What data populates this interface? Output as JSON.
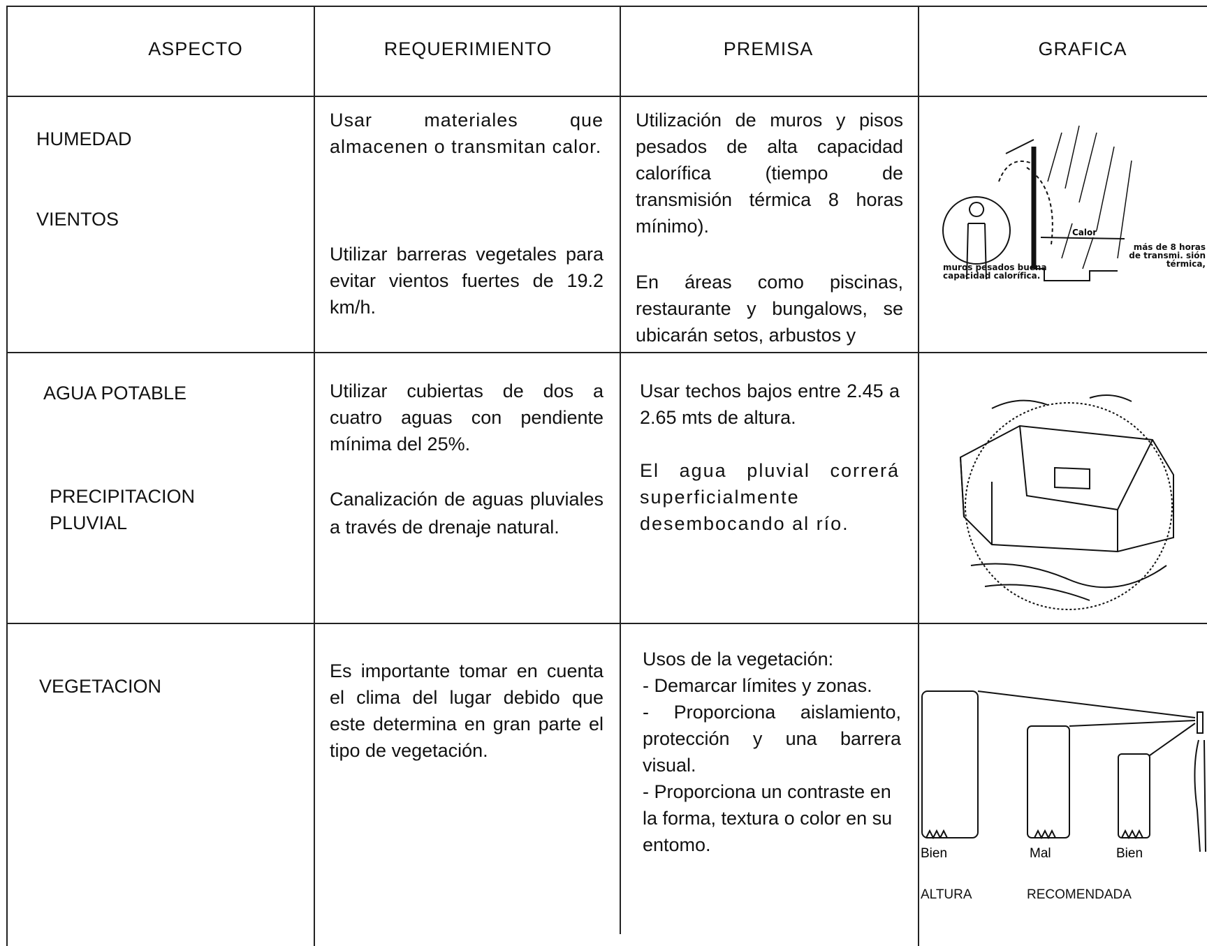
{
  "table": {
    "headers": [
      "ASPECTO",
      "REQUERIMIENTO",
      "PREMISA",
      "GRAFICA"
    ],
    "rows": [
      {
        "aspect": [
          "HUMEDAD",
          "VIENTOS"
        ],
        "requirement": [
          "Usar materiales que almacenen o transmitan calor.",
          "Utilizar barreras vegetales para evitar vientos fuertes de 19.2 km/h."
        ],
        "premise": [
          "Utilización de muros y pisos pesados de alta capacidad calorífica (tiempo de transmisión térmica 8 horas mínimo).",
          "En áreas como piscinas, restaurante y bungalows, se ubicarán setos, arbustos y"
        ],
        "graphic": {
          "labels": [
            "Calor",
            "más de 8 horas de transmi. sión térmica,",
            "muros pesados buena capacidad calorífica."
          ]
        }
      },
      {
        "aspect": [
          "AGUA POTABLE",
          "PRECIPITACION PLUVIAL"
        ],
        "requirement": [
          "Utilizar cubiertas de dos a cuatro aguas con pendiente mínima del 25%.",
          "Canalización de aguas pluviales a través de drenaje natural."
        ],
        "premise": [
          "Usar techos bajos entre 2.45 a 2.65 mts de altura.",
          "El agua pluvial correrá superficialmente desembocando al río."
        ],
        "graphic": {
          "labels": []
        }
      },
      {
        "aspect": [
          "VEGETACION"
        ],
        "requirement": [
          "Es importante tomar en cuenta el clima del lugar debido que este determina en gran parte el tipo de vegetación."
        ],
        "premise": [
          "Usos de la vegetación:",
          "- Demarcar límites y zonas.",
          "- Proporciona aislamiento, protección y una barrera visual.",
          "- Proporciona un contraste en la forma, textura o color en su entomo."
        ],
        "graphic": {
          "labels": [
            "Bien",
            "Mal",
            "Bien",
            "ALTURA",
            "RECOMENDADA"
          ]
        }
      }
    ]
  }
}
